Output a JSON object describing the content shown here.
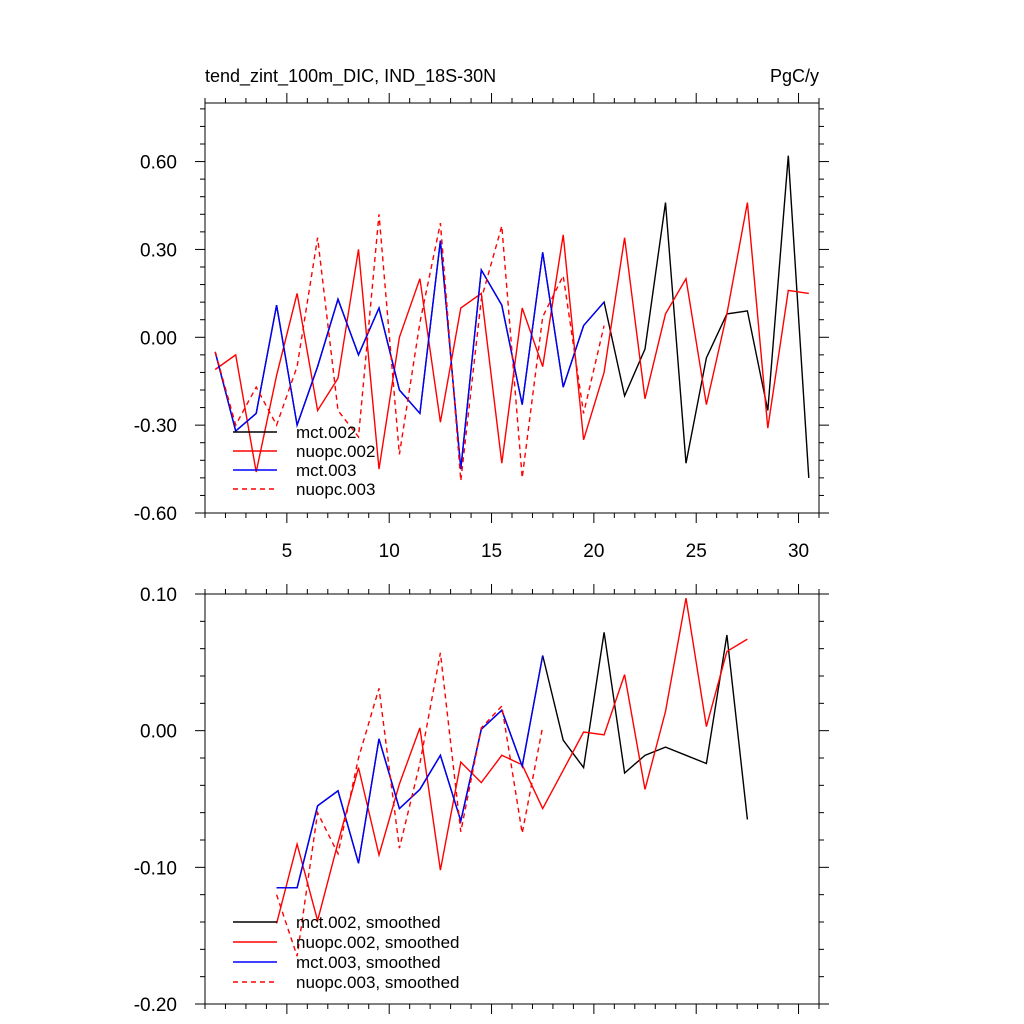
{
  "chart_data": [
    {
      "type": "line",
      "title_left": "tend_zint_100m_DIC, IND_18S-30N",
      "title_right": "PgC/y",
      "xlabel": "",
      "ylabel": "",
      "xlim": [
        1,
        31
      ],
      "ylim": [
        -0.6,
        0.8
      ],
      "x_ticks": [
        5,
        10,
        15,
        20,
        25,
        30
      ],
      "x_tick_labels": [
        "5",
        "10",
        "15",
        "20",
        "25",
        "30"
      ],
      "y_ticks": [
        -0.6,
        -0.3,
        0.0,
        0.3,
        0.6
      ],
      "y_tick_labels": [
        "-0.60",
        "-0.30",
        "0.00",
        "0.30",
        "0.60"
      ],
      "legend_position": "bottom-left",
      "series": [
        {
          "name": "mct.002",
          "color": "#000000",
          "dash": "solid",
          "x": [
            1.5,
            2.5,
            3.5,
            4.5,
            5.5,
            6.5,
            7.5,
            8.5,
            9.5,
            10.5,
            11.5,
            12.5,
            13.5,
            14.5,
            15.5,
            16.5,
            17.5,
            18.5,
            19.5,
            20.5,
            21.5,
            22.5,
            23.5,
            24.5,
            25.5,
            26.5,
            27.5,
            28.5,
            29.5,
            30.5
          ],
          "values": [
            -0.05,
            -0.32,
            -0.26,
            0.11,
            -0.3,
            -0.1,
            0.13,
            -0.06,
            0.1,
            -0.18,
            -0.26,
            0.33,
            -0.45,
            0.23,
            0.11,
            -0.23,
            0.29,
            -0.17,
            0.04,
            0.12,
            -0.2,
            -0.04,
            0.46,
            -0.43,
            -0.07,
            0.08,
            0.09,
            -0.25,
            0.62,
            -0.48
          ]
        },
        {
          "name": "nuopc.002",
          "color": "#ff0000",
          "dash": "solid",
          "x": [
            1.5,
            2.5,
            3.5,
            4.5,
            5.5,
            6.5,
            7.5,
            8.5,
            9.5,
            10.5,
            11.5,
            12.5,
            13.5,
            14.5,
            15.5,
            16.5,
            17.5,
            18.5,
            19.5,
            20.5,
            21.5,
            22.5,
            23.5,
            24.5,
            25.5,
            26.5,
            27.5,
            28.5,
            29.5,
            30.5
          ],
          "values": [
            -0.11,
            -0.06,
            -0.46,
            -0.13,
            0.15,
            -0.25,
            -0.14,
            0.3,
            -0.45,
            0.0,
            0.2,
            -0.29,
            0.1,
            0.15,
            -0.43,
            0.1,
            -0.1,
            0.35,
            -0.35,
            -0.12,
            0.34,
            -0.21,
            0.08,
            0.2,
            -0.23,
            0.08,
            0.46,
            -0.31,
            0.16,
            0.15
          ]
        },
        {
          "name": "mct.003",
          "color": "#0000ff",
          "dash": "solid",
          "x": [
            1.5,
            2.5,
            3.5,
            4.5,
            5.5,
            6.5,
            7.5,
            8.5,
            9.5,
            10.5,
            11.5,
            12.5,
            13.5,
            14.5,
            15.5,
            16.5,
            17.5,
            18.5,
            19.5,
            20.5
          ],
          "values": [
            -0.05,
            -0.32,
            -0.26,
            0.11,
            -0.3,
            -0.1,
            0.13,
            -0.06,
            0.1,
            -0.18,
            -0.26,
            0.33,
            -0.45,
            0.23,
            0.11,
            -0.23,
            0.29,
            -0.17,
            0.04,
            0.12
          ]
        },
        {
          "name": "nuopc.003",
          "color": "#ff0000",
          "dash": "dashed",
          "x": [
            1.5,
            2.5,
            3.5,
            4.5,
            5.5,
            6.5,
            7.5,
            8.5,
            9.5,
            10.5,
            11.5,
            12.5,
            13.5,
            14.5,
            15.5,
            16.5,
            17.5,
            18.5,
            19.5,
            20.5
          ],
          "values": [
            -0.05,
            -0.3,
            -0.17,
            -0.3,
            -0.1,
            0.34,
            -0.25,
            -0.34,
            0.42,
            -0.4,
            0.05,
            0.39,
            -0.49,
            0.13,
            0.38,
            -0.48,
            0.07,
            0.21,
            -0.26,
            0.04
          ]
        }
      ]
    },
    {
      "type": "line",
      "xlim": [
        1,
        31
      ],
      "ylim": [
        -0.2,
        0.1
      ],
      "x_ticks": [
        5,
        10,
        15,
        20,
        25,
        30
      ],
      "y_ticks": [
        -0.2,
        -0.1,
        0.0,
        0.1
      ],
      "y_tick_labels": [
        "-0.20",
        "-0.10",
        "0.00",
        "0.10"
      ],
      "legend_position": "bottom-left",
      "series": [
        {
          "name": "mct.002, smoothed",
          "color": "#000000",
          "dash": "solid",
          "x": [
            4.5,
            5.5,
            6.5,
            7.5,
            8.5,
            9.5,
            10.5,
            11.5,
            12.5,
            13.5,
            14.5,
            15.5,
            16.5,
            17.5,
            18.5,
            19.5,
            20.5,
            21.5,
            22.5,
            23.5,
            24.5,
            25.5,
            26.5,
            27.5
          ],
          "values": [
            -0.115,
            -0.115,
            -0.055,
            -0.044,
            -0.097,
            -0.006,
            -0.057,
            -0.043,
            -0.018,
            -0.066,
            0.001,
            0.015,
            -0.026,
            0.055,
            -0.007,
            -0.027,
            0.072,
            -0.031,
            -0.018,
            -0.012,
            -0.018,
            -0.024,
            0.07,
            -0.065
          ]
        },
        {
          "name": "nuopc.002, smoothed",
          "color": "#ff0000",
          "dash": "solid",
          "x": [
            4.5,
            5.5,
            6.5,
            7.5,
            8.5,
            9.5,
            10.5,
            11.5,
            12.5,
            13.5,
            14.5,
            15.5,
            16.5,
            17.5,
            18.5,
            19.5,
            20.5,
            21.5,
            22.5,
            23.5,
            24.5,
            25.5,
            26.5,
            27.5
          ],
          "values": [
            -0.141,
            -0.083,
            -0.139,
            -0.082,
            -0.027,
            -0.091,
            -0.039,
            0.002,
            -0.102,
            -0.023,
            -0.038,
            -0.018,
            -0.025,
            -0.057,
            -0.029,
            -0.001,
            -0.003,
            0.041,
            -0.043,
            0.014,
            0.097,
            0.003,
            0.058,
            0.067
          ]
        },
        {
          "name": "mct.003, smoothed",
          "color": "#0000ff",
          "dash": "solid",
          "x": [
            4.5,
            5.5,
            6.5,
            7.5,
            8.5,
            9.5,
            10.5,
            11.5,
            12.5,
            13.5,
            14.5,
            15.5,
            16.5,
            17.5
          ],
          "values": [
            -0.115,
            -0.115,
            -0.055,
            -0.044,
            -0.097,
            -0.006,
            -0.057,
            -0.043,
            -0.018,
            -0.066,
            0.001,
            0.015,
            -0.026,
            0.055
          ]
        },
        {
          "name": "nuopc.003, smoothed",
          "color": "#ff0000",
          "dash": "dashed",
          "x": [
            4.5,
            5.5,
            6.5,
            7.5,
            8.5,
            9.5,
            10.5,
            11.5,
            12.5,
            13.5,
            14.5,
            15.5,
            16.5,
            17.5
          ],
          "values": [
            -0.12,
            -0.165,
            -0.06,
            -0.09,
            -0.02,
            0.031,
            -0.086,
            -0.024,
            0.057,
            -0.074,
            0.002,
            0.018,
            -0.075,
            0.003
          ]
        }
      ]
    }
  ]
}
